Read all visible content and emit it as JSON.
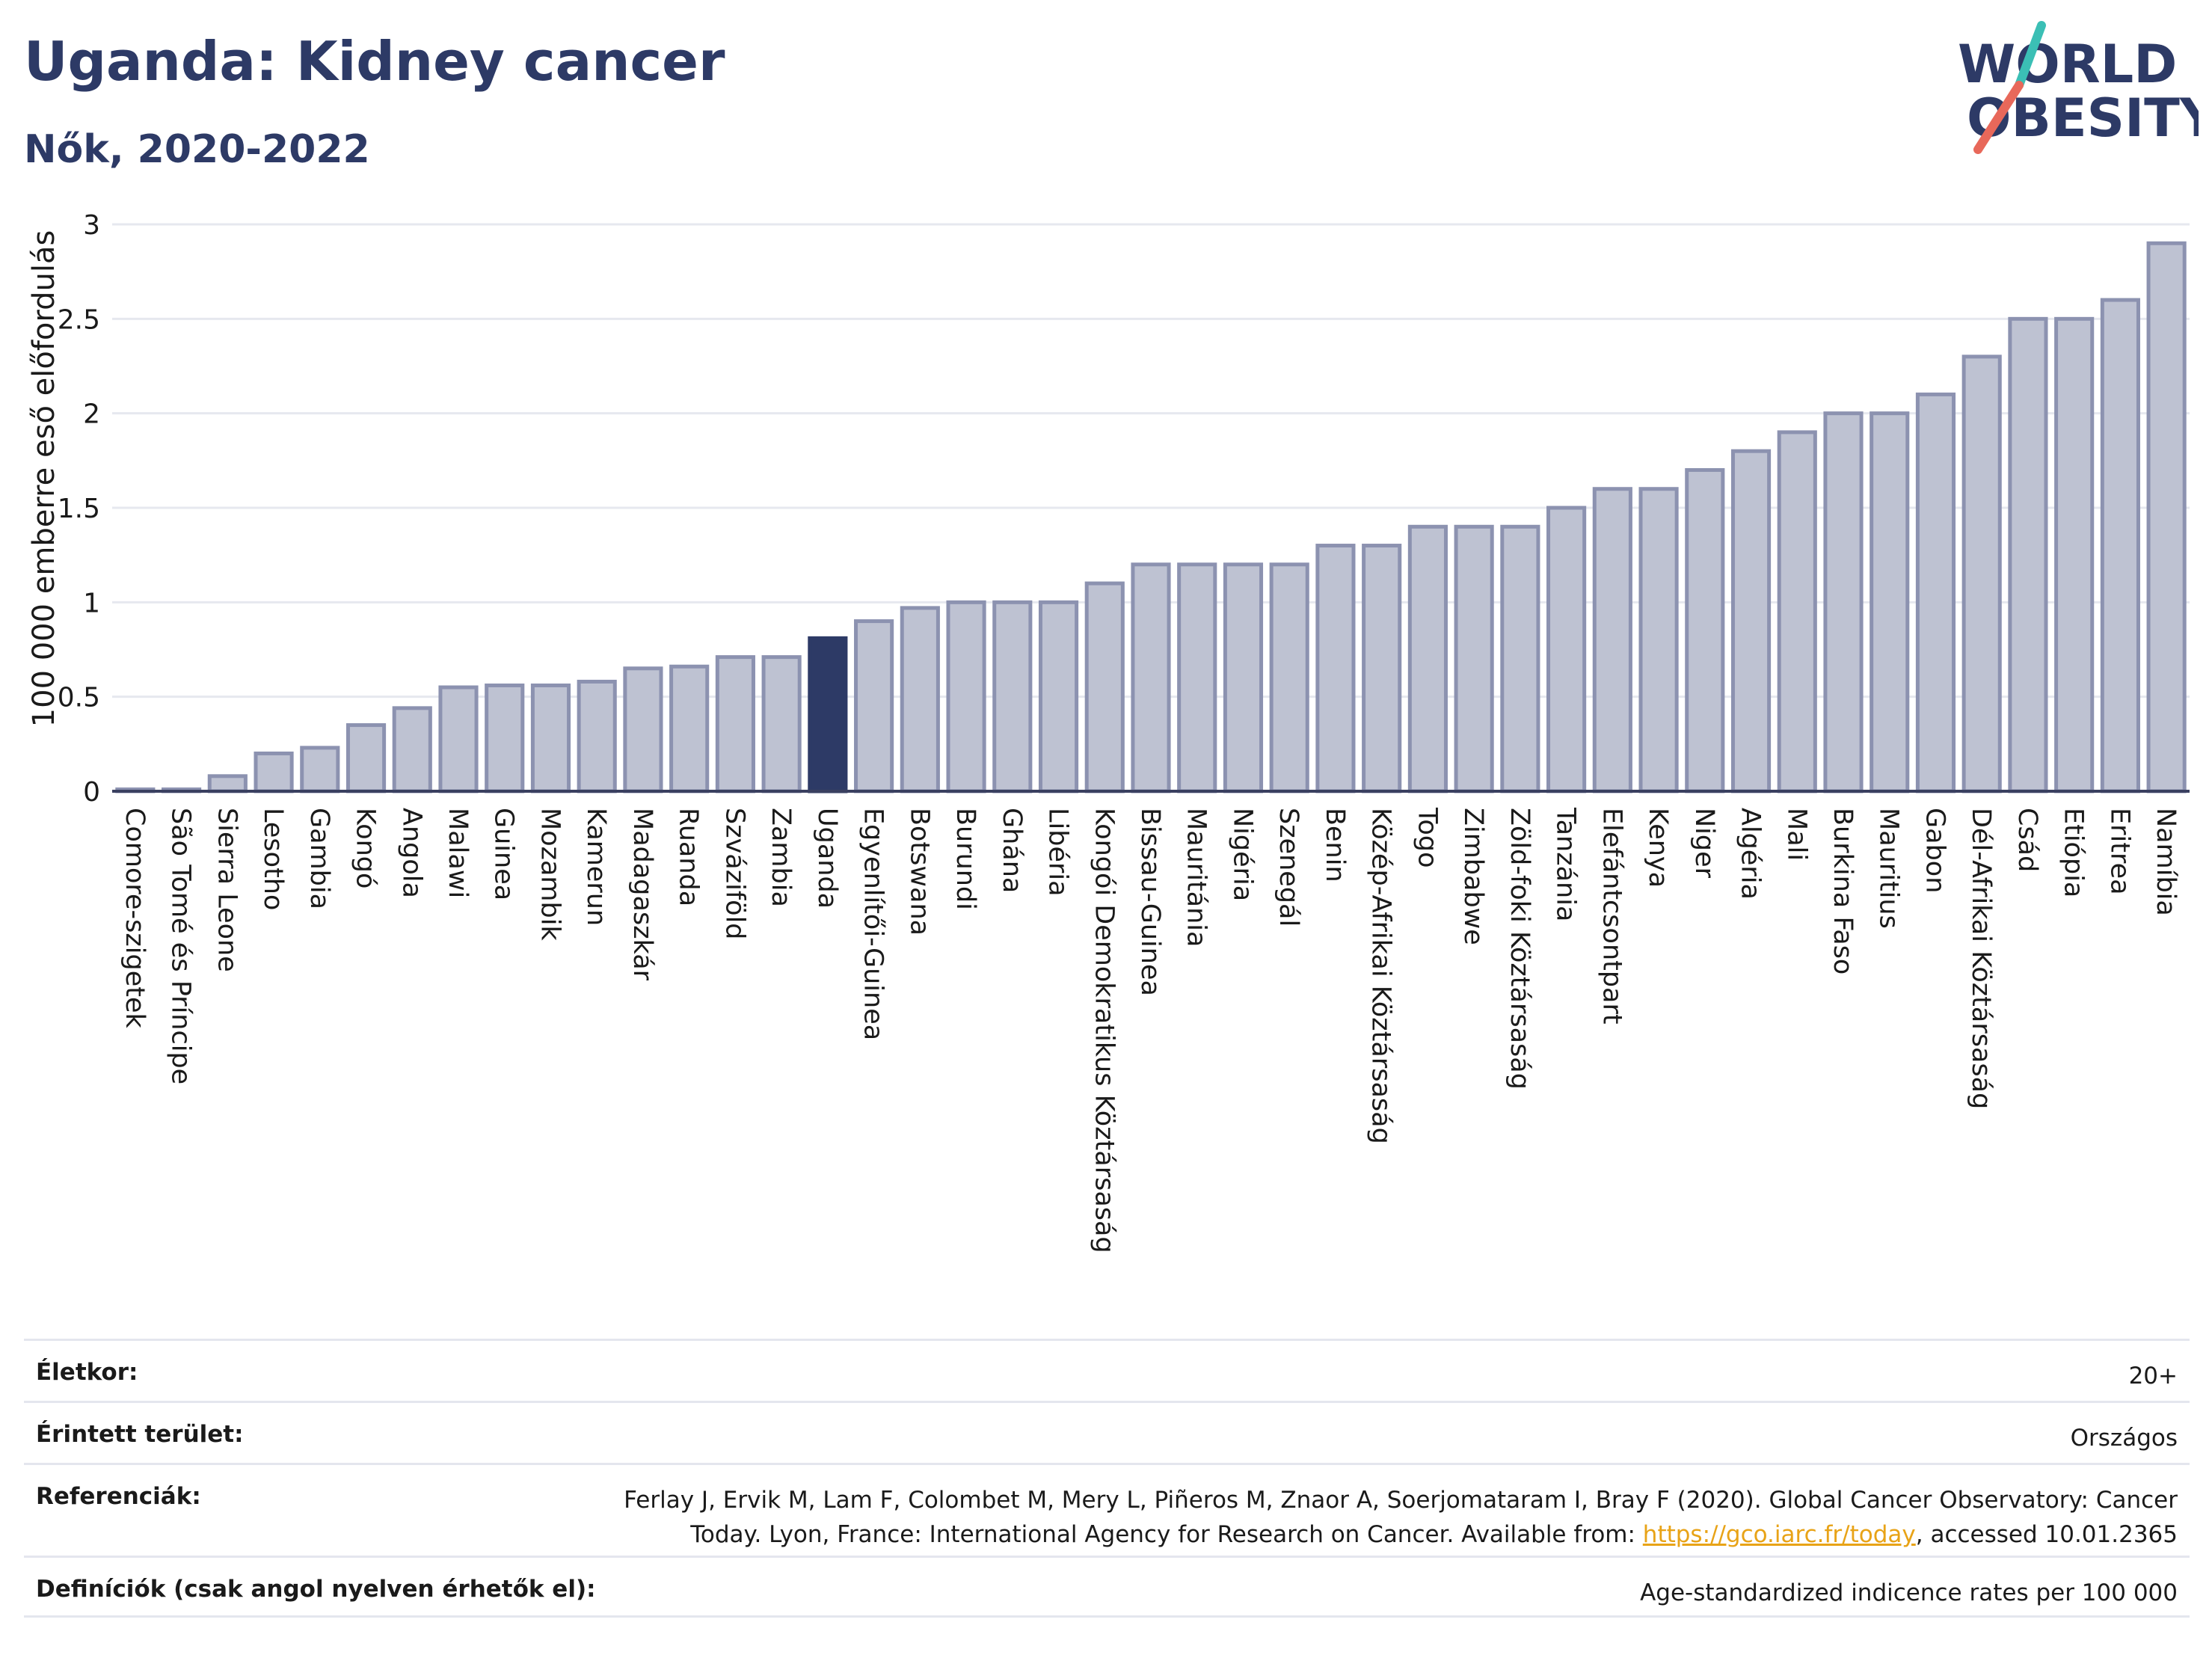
{
  "header": {
    "title": "Uganda: Kidney cancer",
    "subtitle": "Nők, 2020-2022"
  },
  "logo": {
    "line1": "WORLD",
    "line2": "OBESITY",
    "primary_color": "#2d3a66",
    "accent_teal": "#3bbfb5",
    "accent_coral": "#e8685a"
  },
  "chart_data": {
    "type": "bar",
    "ylabel": "100 000 emberre eső előfordulás",
    "ylim": [
      0,
      3
    ],
    "yticks": [
      "0",
      "0.5",
      "1",
      "1.5",
      "2",
      "2.5",
      "3"
    ],
    "grid": true,
    "highlight": "Uganda",
    "bar_color": "#bec2d2",
    "bar_edge_color": "#8c92b0",
    "highlight_color": "#2d3a66",
    "categories": [
      "Comore-szigetek",
      "São Tomé és Príncipe",
      "Sierra Leone",
      "Lesotho",
      "Gambia",
      "Kongó",
      "Angola",
      "Malawi",
      "Guinea",
      "Mozambik",
      "Kamerun",
      "Madagaszkár",
      "Ruanda",
      "Szváziföld",
      "Zambia",
      "Uganda",
      "Egyenlítői-Guinea",
      "Botswana",
      "Burundi",
      "Ghána",
      "Libéria",
      "Kongói Demokratikus Köztársaság",
      "Bissau-Guinea",
      "Mauritánia",
      "Nigéria",
      "Szenegál",
      "Benin",
      "Közép-Afrikai Köztársaság",
      "Togo",
      "Zimbabwe",
      "Zöld-foki Köztársaság",
      "Tanzánia",
      "Elefántcsontpart",
      "Kenya",
      "Niger",
      "Algéria",
      "Mali",
      "Burkina Faso",
      "Mauritius",
      "Gabon",
      "Dél-Afrikai Köztársaság",
      "Csád",
      "Etiópia",
      "Eritrea",
      "Namíbia"
    ],
    "values": [
      0.01,
      0.01,
      0.08,
      0.2,
      0.23,
      0.35,
      0.44,
      0.55,
      0.56,
      0.56,
      0.58,
      0.65,
      0.66,
      0.71,
      0.71,
      0.81,
      0.9,
      0.97,
      1.0,
      1.0,
      1.0,
      1.1,
      1.2,
      1.2,
      1.2,
      1.2,
      1.3,
      1.3,
      1.4,
      1.4,
      1.4,
      1.5,
      1.6,
      1.6,
      1.7,
      1.8,
      1.9,
      2.0,
      2.0,
      2.1,
      2.3,
      2.5,
      2.5,
      2.6,
      2.9
    ]
  },
  "info": {
    "rows": [
      {
        "label": "Életkor:",
        "value": "20+"
      },
      {
        "label": "Érintett terület:",
        "value": "Országos"
      },
      {
        "label": "Referenciák:",
        "value_line1": "Ferlay J, Ervik M, Lam F, Colombet M, Mery L, Piñeros M, Znaor A, Soerjomataram I, Bray F (2020). Global Cancer Observatory: Cancer",
        "value_line2_pre": "Today. Lyon, France: International Agency for Research on Cancer. Available from: ",
        "link_text": "https://gco.iarc.fr/today",
        "value_line2_post": ", accessed 10.01.2365"
      },
      {
        "label": "Definíciók (csak angol nyelven érhetők el):",
        "value": "Age-standardized indicence rates per 100 000"
      }
    ]
  }
}
